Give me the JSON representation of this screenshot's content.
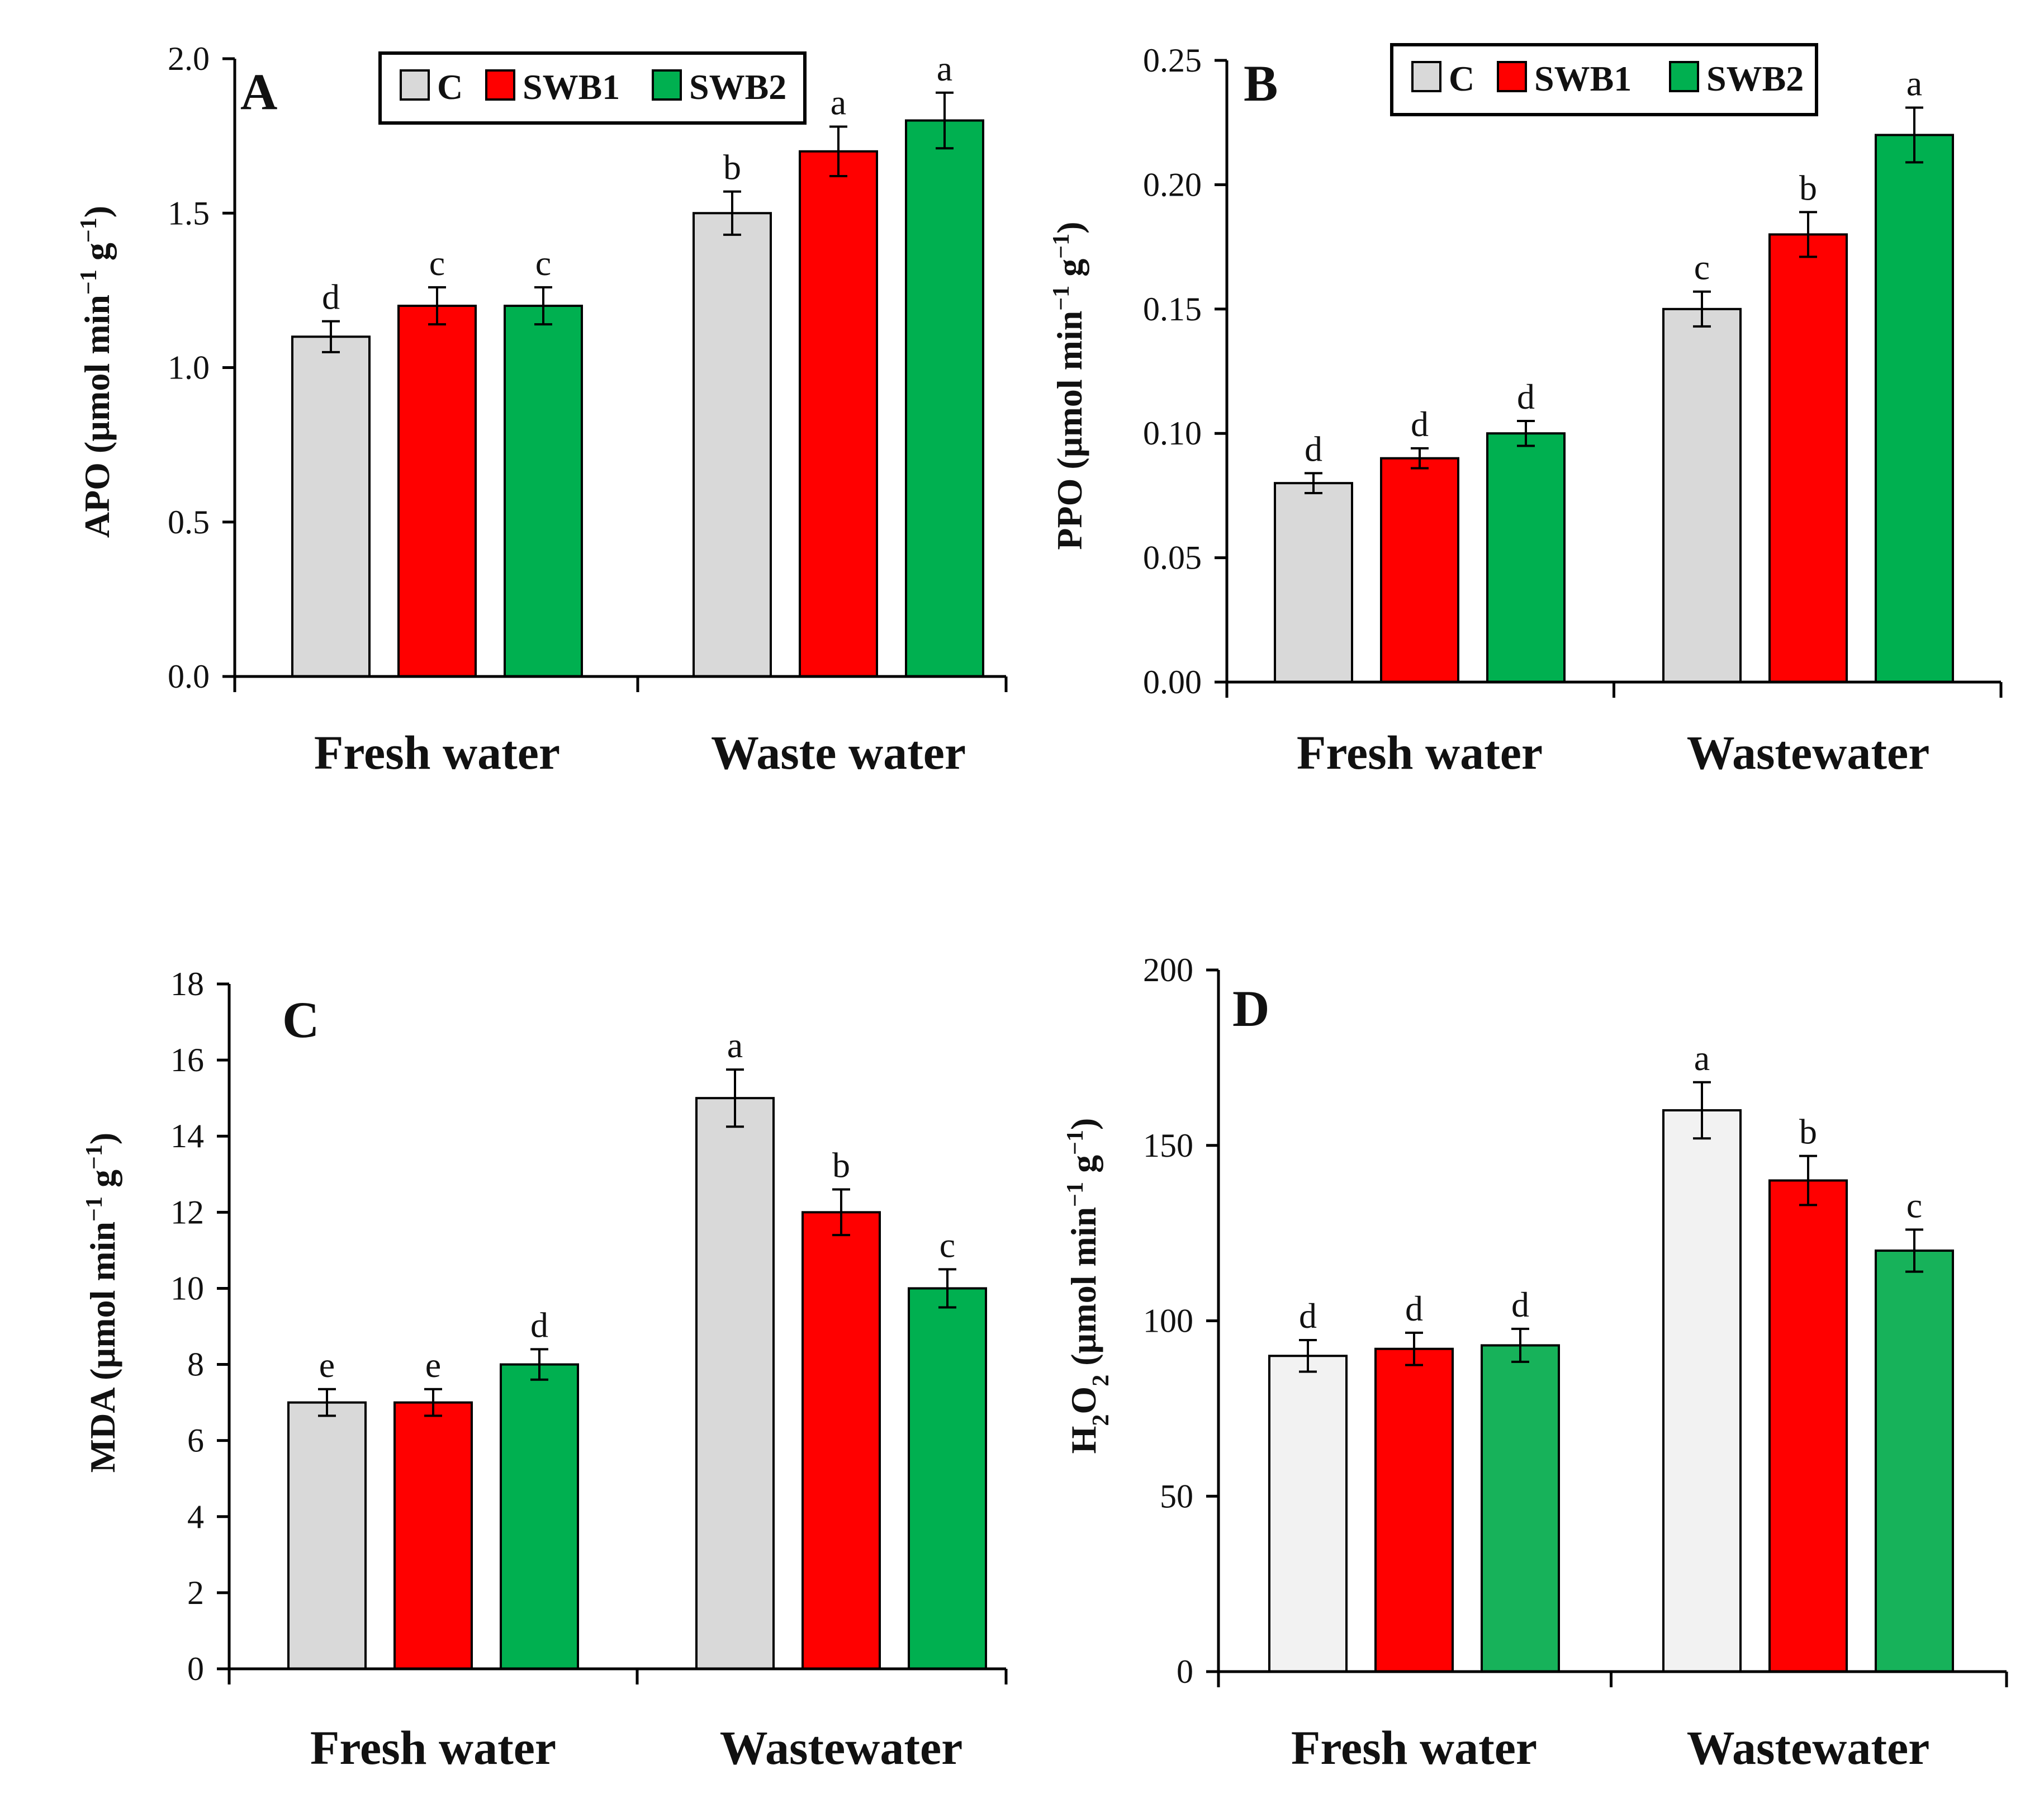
{
  "figure": {
    "series_names": [
      "C",
      "SWB1",
      "SWB2"
    ]
  },
  "chart_data": [
    {
      "type": "bar",
      "panel": "A",
      "ylabel_main": "APO (µmol min",
      "ylabel_sup1": "−1",
      "ylabel_mid": " g",
      "ylabel_sup2": "−1",
      "ylabel_end": ")",
      "categories": [
        "Fresh water",
        "Waste water"
      ],
      "ylim": [
        0,
        2.0
      ],
      "ticks": [
        "0.0",
        "0.5",
        "1.0",
        "1.5",
        "2.0"
      ],
      "legend": [
        "C",
        "SWB1",
        "SWB2"
      ],
      "series": [
        {
          "name": "C",
          "color": "#d9d9d9",
          "values": [
            1.1,
            1.5
          ],
          "errors": [
            0.05,
            0.07
          ],
          "labels": [
            "d",
            "b"
          ]
        },
        {
          "name": "SWB1",
          "color": "#ff0000",
          "values": [
            1.2,
            1.7
          ],
          "errors": [
            0.06,
            0.08
          ],
          "labels": [
            "c",
            "a"
          ]
        },
        {
          "name": "SWB2",
          "color": "#00b050",
          "values": [
            1.2,
            1.8
          ],
          "errors": [
            0.06,
            0.09
          ],
          "labels": [
            "c",
            "a"
          ]
        }
      ]
    },
    {
      "type": "bar",
      "panel": "B",
      "ylabel_main": "PPO (µmol min",
      "ylabel_sup1": "−1",
      "ylabel_mid": " g",
      "ylabel_sup2": "−1",
      "ylabel_end": ")",
      "categories": [
        "Fresh water",
        "Wastewater"
      ],
      "ylim": [
        0,
        0.25
      ],
      "ticks": [
        "0.00",
        "0.05",
        "0.10",
        "0.15",
        "0.20",
        "0.25"
      ],
      "legend": [
        "C",
        "SWB1",
        "SWB2"
      ],
      "series": [
        {
          "name": "C",
          "color": "#d9d9d9",
          "values": [
            0.08,
            0.15
          ],
          "errors": [
            0.004,
            0.007
          ],
          "labels": [
            "d",
            "c"
          ]
        },
        {
          "name": "SWB1",
          "color": "#ff0000",
          "values": [
            0.09,
            0.18
          ],
          "errors": [
            0.004,
            0.009
          ],
          "labels": [
            "d",
            "b"
          ]
        },
        {
          "name": "SWB2",
          "color": "#00b050",
          "values": [
            0.1,
            0.22
          ],
          "errors": [
            0.005,
            0.011
          ],
          "labels": [
            "d",
            "a"
          ]
        }
      ]
    },
    {
      "type": "bar",
      "panel": "C",
      "ylabel_main": "MDA (µmol min",
      "ylabel_sup1": "−1",
      "ylabel_mid": " g",
      "ylabel_sup2": "−1",
      "ylabel_end": ")",
      "categories": [
        "Fresh water",
        "Wastewater"
      ],
      "ylim": [
        0,
        18
      ],
      "ticks": [
        "0",
        "2",
        "4",
        "6",
        "8",
        "10",
        "12",
        "14",
        "16",
        "18"
      ],
      "legend": [],
      "series": [
        {
          "name": "C",
          "color": "#d9d9d9",
          "values": [
            7,
            15
          ],
          "errors": [
            0.35,
            0.75
          ],
          "labels": [
            "e",
            "a"
          ]
        },
        {
          "name": "SWB1",
          "color": "#ff0000",
          "values": [
            7,
            12
          ],
          "errors": [
            0.35,
            0.6
          ],
          "labels": [
            "e",
            "b"
          ]
        },
        {
          "name": "SWB2",
          "color": "#00b050",
          "values": [
            8,
            10
          ],
          "errors": [
            0.4,
            0.5
          ],
          "labels": [
            "d",
            "c"
          ]
        }
      ]
    },
    {
      "type": "bar",
      "panel": "D",
      "ylabel_main": "H",
      "ylabel_sub1": "2",
      "ylabel_mid": "O",
      "ylabel_sub2": "2",
      "ylabel_rest": " (µmol min",
      "ylabel_sup1": "−1",
      "ylabel_mid2": " g",
      "ylabel_sup2": "−1",
      "ylabel_end": ")",
      "categories": [
        "Fresh water",
        "Wastewater"
      ],
      "ylim": [
        0,
        200
      ],
      "ticks": [
        "0",
        "50",
        "100",
        "150",
        "200"
      ],
      "legend": [],
      "series": [
        {
          "name": "C",
          "color": "#f2f2f2",
          "values": [
            90,
            160
          ],
          "errors": [
            4.5,
            8
          ],
          "labels": [
            "d",
            "a"
          ]
        },
        {
          "name": "SWB1",
          "color": "#ff0000",
          "values": [
            92,
            140
          ],
          "errors": [
            4.6,
            7
          ],
          "labels": [
            "d",
            "b"
          ]
        },
        {
          "name": "SWB2",
          "color": "#17b25a",
          "values": [
            93,
            120
          ],
          "errors": [
            4.7,
            6
          ],
          "labels": [
            "d",
            "c"
          ]
        }
      ]
    }
  ]
}
